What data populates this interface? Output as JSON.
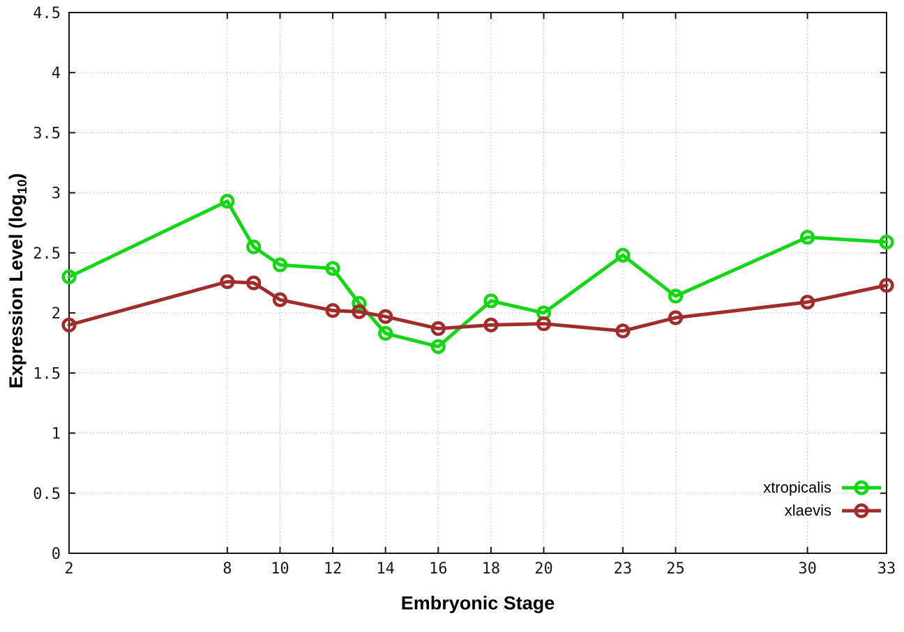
{
  "chart_data": {
    "type": "line",
    "title": "",
    "xlabel": "Embryonic Stage",
    "ylabel": "Expression Level (log10)",
    "ylabel_parts": {
      "pre": "Expression Level (log",
      "sub": "10",
      "post": ")"
    },
    "x": [
      2,
      8,
      9,
      10,
      12,
      13,
      14,
      16,
      18,
      20,
      23,
      25,
      30,
      33
    ],
    "series": [
      {
        "name": "xtropicalis",
        "color": "#15d615",
        "values": [
          2.3,
          2.93,
          2.55,
          2.4,
          2.37,
          2.08,
          1.83,
          1.72,
          2.1,
          2.0,
          2.48,
          2.14,
          2.63,
          2.59
        ]
      },
      {
        "name": "xlaevis",
        "color": "#a12c2c",
        "values": [
          1.9,
          2.26,
          2.25,
          2.11,
          2.02,
          2.01,
          1.97,
          1.87,
          1.9,
          1.91,
          1.85,
          1.96,
          2.09,
          2.23
        ]
      }
    ],
    "xlim": [
      2,
      33
    ],
    "ylim": [
      0,
      4.5
    ],
    "xticks": [
      2,
      8,
      10,
      12,
      14,
      16,
      18,
      20,
      23,
      25,
      30,
      33
    ],
    "yticks": [
      0,
      0.5,
      1,
      1.5,
      2,
      2.5,
      3,
      3.5,
      4,
      4.5
    ],
    "grid": true,
    "grid_style": "dotted",
    "legend_position": "bottom-right",
    "marker": "open-circle",
    "border_color": "#161616",
    "grid_color": "#b9b9b9"
  }
}
